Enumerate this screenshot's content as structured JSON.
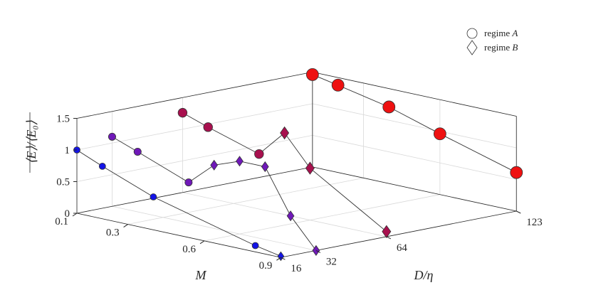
{
  "chart_data": {
    "type": "scatter3d",
    "xlabel": "M",
    "ylabel": "D/η",
    "zlabel": "⟨E⟩/⟨E₀⟩",
    "x_ticks": [
      "0.1",
      "0.3",
      "0.6",
      "0.9"
    ],
    "y_ticks": [
      "16",
      "32",
      "64",
      "123"
    ],
    "z_ticks": [
      "0",
      "0.5",
      "1",
      "1.5"
    ],
    "zlim": [
      0,
      1.5
    ],
    "legend": {
      "position": "top-right",
      "entries": [
        {
          "marker": "circle",
          "prefix": "regime ",
          "var": "A"
        },
        {
          "marker": "diamond",
          "prefix": "regime ",
          "var": "B"
        }
      ]
    },
    "lines": [
      {
        "D": 16,
        "points": [
          {
            "M": 0.1,
            "E": 1.0,
            "regime": "A",
            "color": "#1414e6"
          },
          {
            "M": 0.2,
            "E": 0.83,
            "regime": "A",
            "color": "#1414e6"
          },
          {
            "M": 0.4,
            "E": 0.52,
            "regime": "A",
            "color": "#1414e6"
          },
          {
            "M": 0.8,
            "E": 0.1,
            "regime": "A",
            "color": "#1414e6"
          },
          {
            "M": 0.9,
            "E": 0.02,
            "regime": "B",
            "color": "#1414e6"
          }
        ]
      },
      {
        "D": 32,
        "points": [
          {
            "M": 0.1,
            "E": 1.1,
            "regime": "A",
            "color": "#6f18b8"
          },
          {
            "M": 0.2,
            "E": 0.95,
            "regime": "A",
            "color": "#6f18b8"
          },
          {
            "M": 0.4,
            "E": 0.64,
            "regime": "A",
            "color": "#6f18b8"
          },
          {
            "M": 0.5,
            "E": 1.0,
            "regime": "B",
            "color": "#6f18b8"
          },
          {
            "M": 0.6,
            "E": 1.15,
            "regime": "B",
            "color": "#6f18b8"
          },
          {
            "M": 0.7,
            "E": 1.15,
            "regime": "B",
            "color": "#6f18b8"
          },
          {
            "M": 0.8,
            "E": 0.46,
            "regime": "B",
            "color": "#6f18b8"
          },
          {
            "M": 0.9,
            "E": 0.0,
            "regime": "B",
            "color": "#6f18b8"
          }
        ]
      },
      {
        "D": 64,
        "points": [
          {
            "M": 0.1,
            "E": 1.26,
            "regime": "A",
            "color": "#a8104e"
          },
          {
            "M": 0.2,
            "E": 1.12,
            "regime": "A",
            "color": "#a8104e"
          },
          {
            "M": 0.4,
            "E": 0.87,
            "regime": "A",
            "color": "#a8104e"
          },
          {
            "M": 0.5,
            "E": 1.29,
            "regime": "B",
            "color": "#a8104e"
          },
          {
            "M": 0.6,
            "E": 0.82,
            "regime": "B",
            "color": "#a8104e"
          },
          {
            "M": 0.9,
            "E": 0.08,
            "regime": "B",
            "color": "#a8104e"
          }
        ]
      },
      {
        "D": 123,
        "points": [
          {
            "M": 0.1,
            "E": 1.46,
            "regime": "A",
            "color": "#ee1111"
          },
          {
            "M": 0.2,
            "E": 1.38,
            "regime": "A",
            "color": "#ee1111"
          },
          {
            "M": 0.4,
            "E": 1.21,
            "regime": "A",
            "color": "#ee1111"
          },
          {
            "M": 0.6,
            "E": 0.96,
            "regime": "A",
            "color": "#ee1111"
          },
          {
            "M": 0.9,
            "E": 0.61,
            "regime": "A",
            "color": "#ee1111"
          }
        ]
      }
    ]
  }
}
